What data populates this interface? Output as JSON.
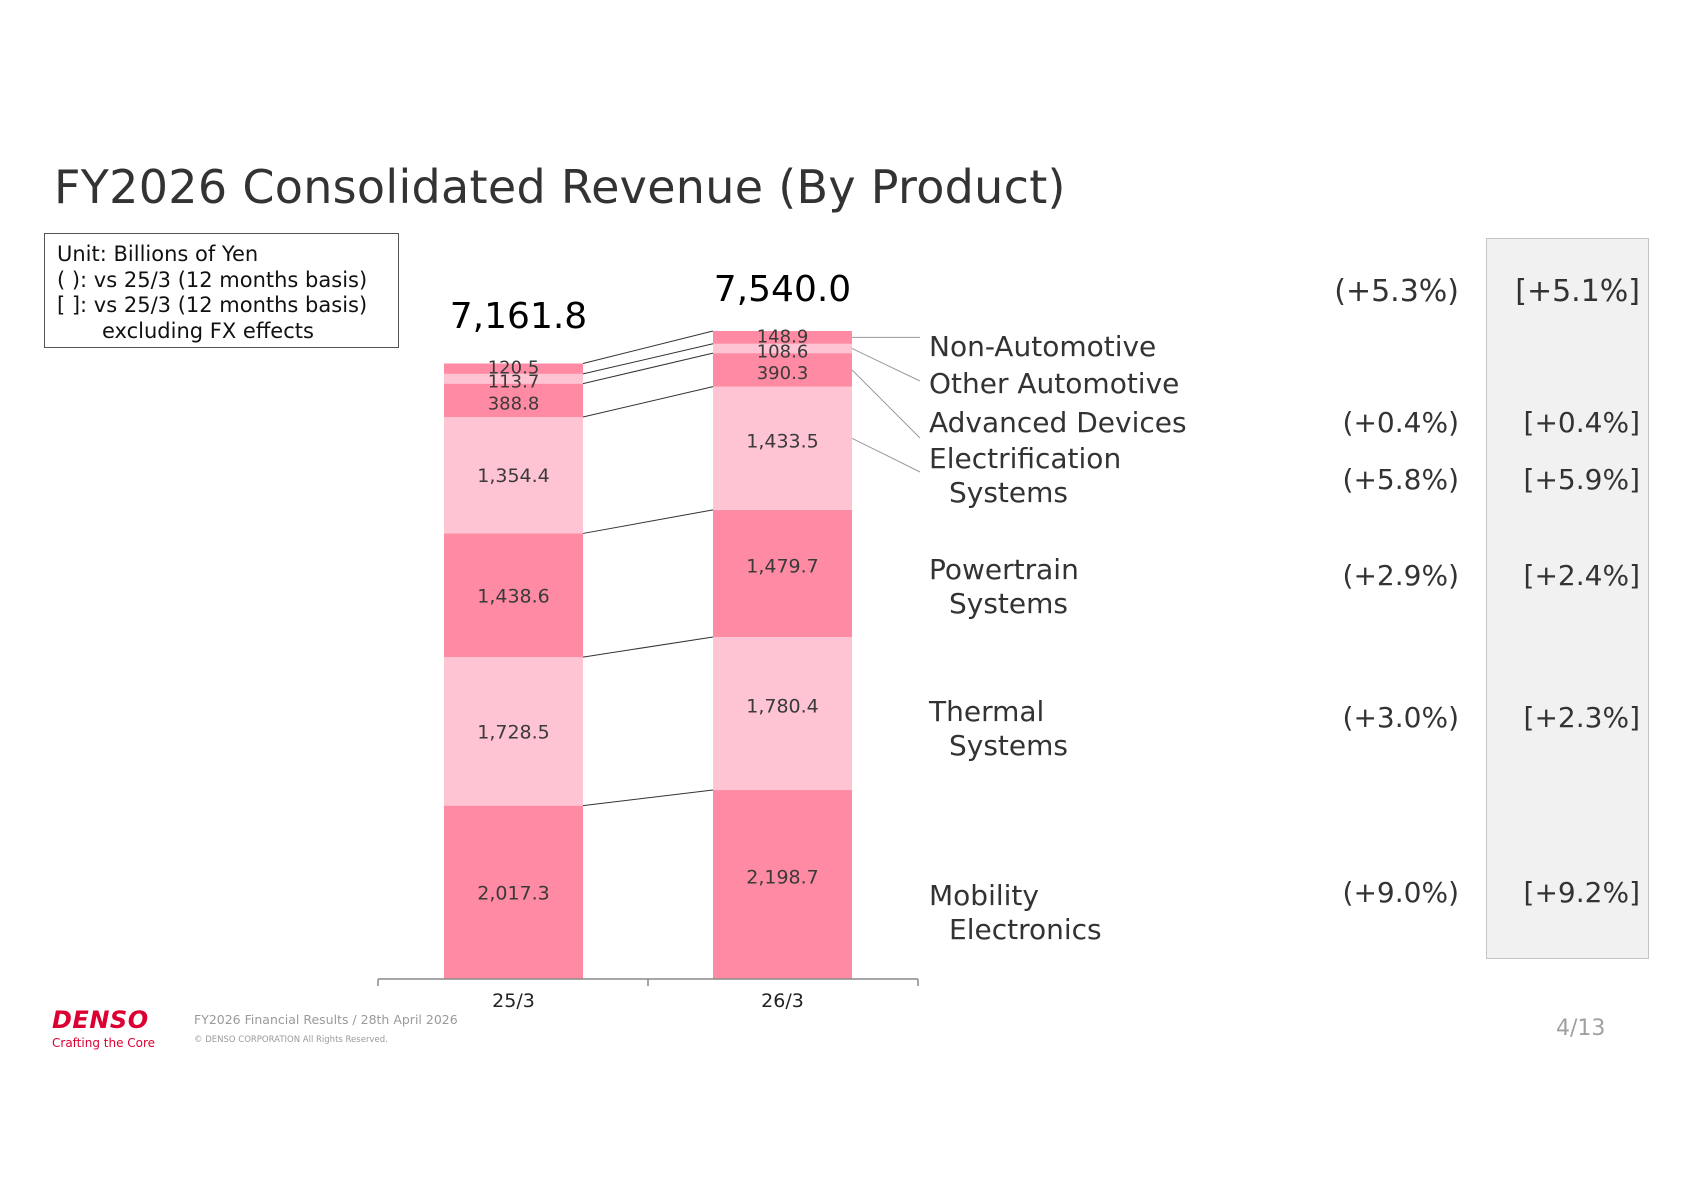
{
  "title": "FY2026 Consolidated Revenue (By Product)",
  "unit_note": {
    "line1": "Unit: Billions of Yen",
    "line2": "( ): vs 25/3 (12 months basis)",
    "line3": "[ ]: vs 25/3 (12 months basis)",
    "line4": "excluding FX effects"
  },
  "chart_data": {
    "type": "bar",
    "stacked": true,
    "categories": [
      "25/3",
      "26/3"
    ],
    "totals": [
      7161.8,
      7540.0
    ],
    "total_labels": [
      "7,161.8",
      "7,540.0"
    ],
    "series": [
      {
        "name": "Mobility Electronics",
        "label_lines": [
          "Mobility",
          "Electronics"
        ],
        "values": [
          2017.3,
          2198.7
        ],
        "value_labels": [
          "2,017.3",
          "2,198.7"
        ],
        "color": "#ff8aa3",
        "yoy": "(+9.0%)",
        "yoy_ex_fx": "[+9.2%]"
      },
      {
        "name": "Thermal Systems",
        "label_lines": [
          "Thermal",
          "Systems"
        ],
        "values": [
          1728.5,
          1780.4
        ],
        "value_labels": [
          "1,728.5",
          "1,780.4"
        ],
        "color": "#ffc4d3",
        "yoy": "(+3.0%)",
        "yoy_ex_fx": "[+2.3%]"
      },
      {
        "name": "Powertrain Systems",
        "label_lines": [
          "Powertrain",
          "Systems"
        ],
        "values": [
          1438.6,
          1479.7
        ],
        "value_labels": [
          "1,438.6",
          "1,479.7"
        ],
        "color": "#ff8aa3",
        "yoy": "(+2.9%)",
        "yoy_ex_fx": "[+2.4%]"
      },
      {
        "name": "Electrification Systems",
        "label_lines": [
          "Electrification",
          "Systems"
        ],
        "values": [
          1354.4,
          1433.5
        ],
        "value_labels": [
          "1,354.4",
          "1,433.5"
        ],
        "color": "#ffc4d3",
        "yoy": "(+5.8%)",
        "yoy_ex_fx": "[+5.9%]"
      },
      {
        "name": "Advanced Devices",
        "label_lines": [
          "Advanced Devices"
        ],
        "values": [
          388.8,
          390.3
        ],
        "value_labels": [
          "388.8",
          "390.3"
        ],
        "color": "#ff8aa3",
        "yoy": "(+0.4%)",
        "yoy_ex_fx": "[+0.4%]"
      },
      {
        "name": "Other Automotive",
        "label_lines": [
          "Other Automotive"
        ],
        "values": [
          113.7,
          108.6
        ],
        "value_labels": [
          "113.7",
          "108.6"
        ],
        "color": "#ffc4d3",
        "yoy": "",
        "yoy_ex_fx": ""
      },
      {
        "name": "Non-Automotive",
        "label_lines": [
          "Non-Automotive"
        ],
        "values": [
          120.5,
          148.9
        ],
        "value_labels": [
          "120.5",
          "148.9"
        ],
        "color": "#ff8aa3",
        "yoy": "",
        "yoy_ex_fx": ""
      }
    ],
    "total_change": {
      "yoy": "(+5.3%)",
      "yoy_ex_fx": "[+5.1%]"
    },
    "ylim": [
      0,
      7540.0
    ],
    "grid": false,
    "legend": "right (category labels beside the 26/3 bar)"
  },
  "footer": {
    "logo": "DENSO",
    "tagline": "Crafting the Core",
    "report": "FY2026 Financial Results / 28th April 2026",
    "copyright": "© DENSO CORPORATION All Rights Reserved.",
    "page": "4/13"
  },
  "colors": {
    "dark_segment": "#ff8aa3",
    "light_segment": "#ffc4d3",
    "brand": "#dc0032"
  }
}
